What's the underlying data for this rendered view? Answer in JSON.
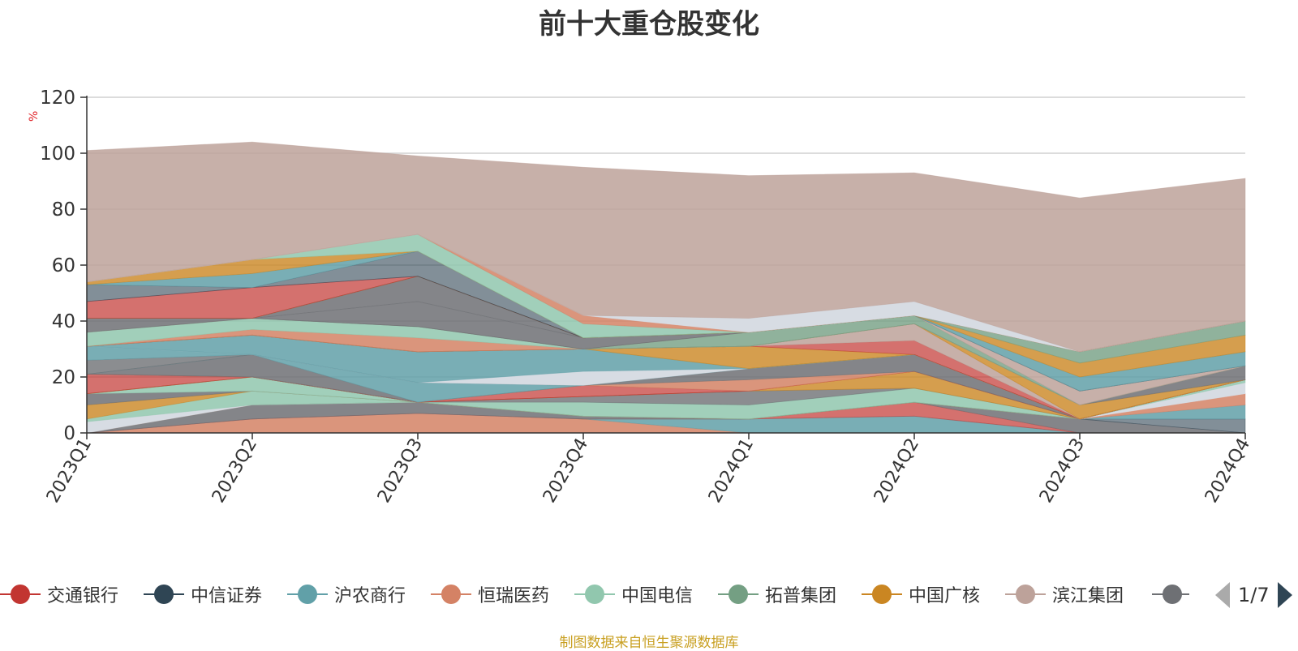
{
  "title": "前十大重仓股变化",
  "unit_label": "%",
  "footer": "制图数据来自恒生聚源数据库",
  "pager": {
    "text": "1/7"
  },
  "legend": [
    {
      "name": "交通银行",
      "color": "#c23531"
    },
    {
      "name": "中信证券",
      "color": "#2f4554"
    },
    {
      "name": "沪农商行",
      "color": "#61a0a8"
    },
    {
      "name": "恒瑞医药",
      "color": "#d48265"
    },
    {
      "name": "中国电信",
      "color": "#91c7ae"
    },
    {
      "name": "拓普集团",
      "color": "#749f83"
    },
    {
      "name": "中国广核",
      "color": "#ca8622"
    },
    {
      "name": "滨江集团",
      "color": "#bda29a"
    },
    {
      "name": "",
      "color": "#6e7074"
    }
  ],
  "chart_data": {
    "type": "area",
    "stacked": true,
    "categories": [
      "2023Q1",
      "2023Q2",
      "2023Q3",
      "2023Q4",
      "2024Q1",
      "2024Q2",
      "2024Q3",
      "2024Q4"
    ],
    "ylim": [
      0,
      120
    ],
    "yticks": [
      0,
      20,
      40,
      60,
      80,
      100,
      120
    ],
    "ylabel": "%",
    "grid": true,
    "series": [
      {
        "color": "#d48265",
        "opacity": 0.85,
        "values": [
          0,
          5,
          7,
          5,
          0,
          0,
          0,
          0
        ]
      },
      {
        "color": "#61a0a8",
        "opacity": 0.85,
        "values": [
          0,
          0,
          0,
          0,
          5,
          6,
          0,
          0
        ]
      },
      {
        "color": "#c23531",
        "opacity": 0.7,
        "values": [
          0,
          0,
          0,
          0,
          0,
          5,
          0,
          0
        ]
      },
      {
        "color": "#6e7074",
        "opacity": 0.85,
        "values": [
          0,
          5,
          4,
          1,
          0,
          0,
          5,
          0
        ]
      },
      {
        "color": "#2f4554",
        "opacity": 0.6,
        "values": [
          0,
          0,
          0,
          0,
          0,
          0,
          0,
          5
        ]
      },
      {
        "color": "#61a0a8",
        "opacity": 0.85,
        "values": [
          0,
          0,
          0,
          0,
          0,
          0,
          0,
          5
        ]
      },
      {
        "color": "#d48265",
        "opacity": 0.85,
        "values": [
          0,
          0,
          0,
          0,
          0,
          0,
          0,
          4
        ]
      },
      {
        "color": "#d7dce3",
        "opacity": 1.0,
        "values": [
          4,
          0,
          0,
          0,
          0,
          0,
          0,
          4
        ]
      },
      {
        "color": "#91c7ae",
        "opacity": 0.85,
        "values": [
          1,
          5,
          0,
          0,
          0,
          0,
          0,
          1
        ]
      },
      {
        "color": "#ca8622",
        "opacity": 0.8,
        "values": [
          5,
          0,
          0,
          0,
          0,
          0,
          0,
          0
        ]
      },
      {
        "color": "#6e7074",
        "opacity": 0.85,
        "values": [
          4,
          0,
          0,
          0,
          0,
          0,
          0,
          0
        ]
      },
      {
        "color": "#91c7ae",
        "opacity": 0.85,
        "values": [
          0,
          5,
          0,
          5,
          5,
          5,
          0,
          0
        ]
      },
      {
        "color": "#6e7074",
        "opacity": 0.8,
        "values": [
          0,
          0,
          0,
          2,
          5,
          0,
          0,
          0
        ]
      },
      {
        "color": "#ca8622",
        "opacity": 0.8,
        "values": [
          0,
          0,
          0,
          0,
          0,
          6,
          0,
          0
        ]
      },
      {
        "color": "#c23531",
        "opacity": 0.7,
        "values": [
          7,
          0,
          0,
          0,
          0,
          0,
          0,
          0
        ]
      },
      {
        "color": "#c23531",
        "opacity": 0.7,
        "values": [
          0,
          0,
          0,
          4,
          0,
          0,
          0,
          0
        ]
      },
      {
        "color": "#d48265",
        "opacity": 0.85,
        "values": [
          0,
          0,
          0,
          0,
          4,
          0,
          0,
          0
        ]
      },
      {
        "color": "#6e7074",
        "opacity": 0.85,
        "values": [
          0,
          8,
          0,
          0,
          4,
          6,
          0,
          0
        ]
      },
      {
        "color": "#61a0a8",
        "opacity": 0.85,
        "values": [
          0,
          0,
          7,
          0,
          0,
          0,
          0,
          0
        ]
      },
      {
        "color": "#6e7074",
        "opacity": 0.8,
        "values": [
          5,
          0,
          0,
          0,
          0,
          0,
          0,
          0
        ]
      },
      {
        "color": "#61a0a8",
        "opacity": 0.85,
        "values": [
          5,
          0,
          0,
          0,
          0,
          0,
          0,
          0
        ]
      },
      {
        "color": "#d7dce3",
        "opacity": 1.0,
        "values": [
          0,
          0,
          0,
          5,
          0,
          0,
          0,
          0
        ]
      },
      {
        "color": "#61a0a8",
        "opacity": 0.85,
        "values": [
          0,
          7,
          11,
          8,
          0,
          0,
          0,
          0
        ]
      },
      {
        "color": "#ca8622",
        "opacity": 0.8,
        "values": [
          0,
          0,
          0,
          0,
          8,
          0,
          0,
          0
        ]
      },
      {
        "color": "#c23531",
        "opacity": 0.7,
        "values": [
          0,
          0,
          0,
          0,
          0,
          5,
          0,
          0
        ]
      },
      {
        "color": "#bda29a",
        "opacity": 0.85,
        "values": [
          0,
          0,
          0,
          0,
          0,
          6,
          0,
          0
        ]
      },
      {
        "color": "#ca8622",
        "opacity": 0.8,
        "values": [
          0,
          0,
          0,
          0,
          0,
          0,
          5,
          0
        ]
      },
      {
        "color": "#6e7074",
        "opacity": 0.85,
        "values": [
          0,
          0,
          0,
          0,
          0,
          0,
          0,
          5
        ]
      },
      {
        "color": "#d48265",
        "opacity": 0.85,
        "values": [
          0,
          2,
          5,
          0,
          0,
          0,
          0,
          0
        ]
      },
      {
        "color": "#91c7ae",
        "opacity": 0.85,
        "values": [
          5,
          4,
          4,
          0,
          0,
          0,
          0,
          0
        ]
      },
      {
        "color": "#749f83",
        "opacity": 0.8,
        "values": [
          0,
          0,
          0,
          0,
          5,
          3,
          0,
          0
        ]
      },
      {
        "color": "#bda29a",
        "opacity": 0.85,
        "values": [
          0,
          0,
          0,
          0,
          0,
          0,
          5,
          0
        ]
      },
      {
        "color": "#6e7074",
        "opacity": 0.85,
        "values": [
          5,
          0,
          0,
          0,
          0,
          0,
          0,
          0
        ]
      },
      {
        "color": "#6e7074",
        "opacity": 0.85,
        "values": [
          0,
          0,
          9,
          4,
          0,
          0,
          0,
          0
        ]
      },
      {
        "color": "#6e7074",
        "opacity": 0.85,
        "values": [
          0,
          0,
          9,
          0,
          0,
          0,
          0,
          0
        ]
      },
      {
        "color": "#61a0a8",
        "opacity": 0.85,
        "values": [
          0,
          0,
          0,
          0,
          0,
          0,
          5,
          5
        ]
      },
      {
        "color": "#ca8622",
        "opacity": 0.8,
        "values": [
          0,
          0,
          0,
          0,
          0,
          0,
          5,
          6
        ]
      },
      {
        "color": "#749f83",
        "opacity": 0.8,
        "values": [
          0,
          0,
          0,
          0,
          0,
          0,
          4,
          5
        ]
      },
      {
        "color": "#c23531",
        "opacity": 0.7,
        "values": [
          6,
          11,
          0,
          0,
          0,
          0,
          0,
          0
        ]
      },
      {
        "color": "#2f4554",
        "opacity": 0.6,
        "values": [
          6,
          0,
          9,
          0,
          0,
          0,
          0,
          0
        ]
      },
      {
        "color": "#61a0a8",
        "opacity": 0.85,
        "values": [
          0,
          5,
          0,
          0,
          0,
          0,
          0,
          0
        ]
      },
      {
        "color": "#ca8622",
        "opacity": 0.8,
        "values": [
          1,
          5,
          0,
          0,
          0,
          0,
          0,
          0
        ]
      },
      {
        "color": "#91c7ae",
        "opacity": 0.85,
        "values": [
          0,
          0,
          6,
          5,
          0,
          0,
          0,
          0
        ]
      },
      {
        "color": "#d48265",
        "opacity": 0.85,
        "values": [
          0,
          0,
          0,
          3,
          0,
          0,
          0,
          0
        ]
      },
      {
        "color": "#d7dce3",
        "opacity": 1.0,
        "values": [
          0,
          0,
          0,
          0,
          5,
          5,
          0,
          0
        ]
      },
      {
        "color": "#bda29a",
        "opacity": 0.85,
        "values": [
          47,
          42,
          28,
          53,
          51,
          46,
          55,
          51
        ]
      }
    ]
  }
}
